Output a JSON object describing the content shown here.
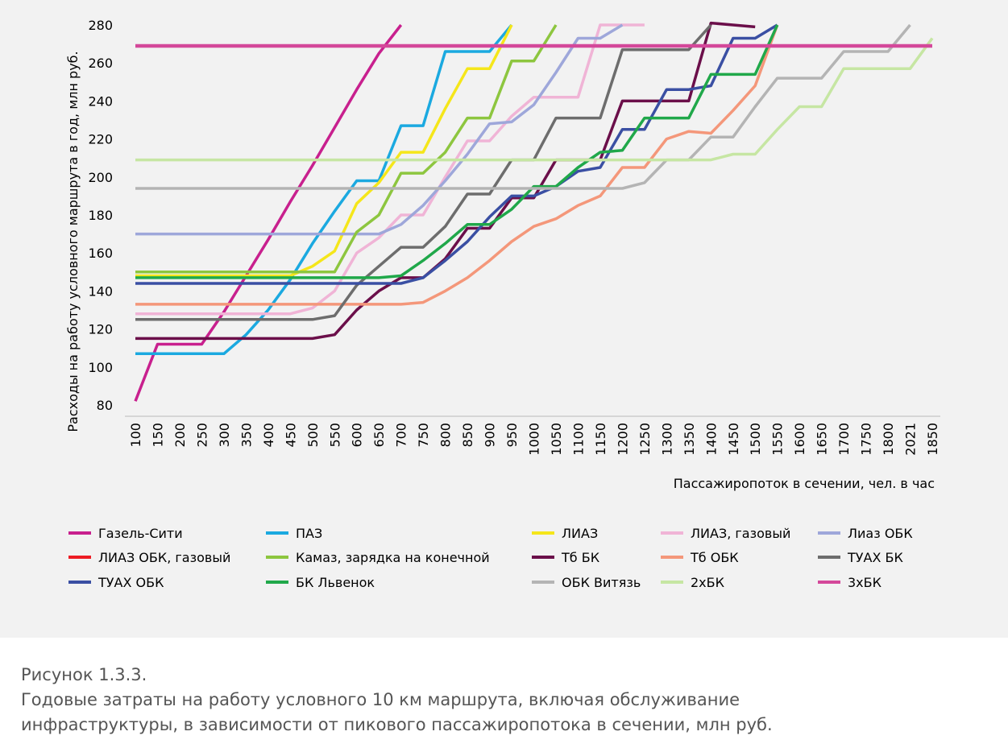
{
  "chart_data": {
    "type": "line",
    "y_label": "Расходы на работу условного маршрута в год, млн руб.",
    "x_label": "Пассажиропоток в сечении, чел. в час",
    "categories": [
      "100",
      "150",
      "200",
      "250",
      "300",
      "350",
      "400",
      "450",
      "500",
      "550",
      "600",
      "650",
      "700",
      "750",
      "800",
      "850",
      "900",
      "950",
      "1000",
      "1050",
      "1100",
      "1150",
      "1200",
      "1250",
      "1300",
      "1350",
      "1400",
      "1450",
      "1500",
      "1550",
      "1600",
      "1650",
      "1700",
      "1750",
      "1800",
      "2021",
      "1850"
    ],
    "ylim": [
      80,
      280
    ],
    "yticks": [
      80,
      100,
      120,
      140,
      160,
      180,
      200,
      220,
      240,
      260,
      280
    ],
    "grid": false,
    "series": [
      {
        "name": "Газель-Сити",
        "color": "#c8208e",
        "values": [
          82,
          112,
          112,
          112,
          129,
          148,
          167,
          187,
          206,
          226,
          246,
          265,
          280,
          null,
          null,
          null,
          null,
          null,
          null,
          null,
          null,
          null,
          null,
          null,
          null,
          null,
          null,
          null,
          null,
          null,
          null,
          null,
          null,
          null,
          null,
          null,
          null
        ]
      },
      {
        "name": "ПАЗ",
        "color": "#1ba9e0",
        "values": [
          107,
          107,
          107,
          107,
          107,
          117,
          130,
          146,
          165,
          182,
          198,
          198,
          227,
          227,
          266,
          266,
          266,
          280,
          null,
          null,
          null,
          null,
          null,
          null,
          null,
          null,
          null,
          null,
          null,
          null,
          null,
          null,
          null,
          null,
          null,
          null,
          null
        ]
      },
      {
        "name": "ЛИАЗ",
        "color": "#f5e61a",
        "values": [
          148,
          148,
          148,
          148,
          148,
          148,
          148,
          148,
          153,
          161,
          186,
          197,
          213,
          213,
          236,
          257,
          257,
          280,
          null,
          null,
          null,
          null,
          null,
          null,
          null,
          null,
          null,
          null,
          null,
          null,
          null,
          null,
          null,
          null,
          null,
          null,
          null
        ]
      },
      {
        "name": "ЛИАЗ, газовый",
        "color": "#f0b4d6",
        "values": [
          128,
          128,
          128,
          128,
          128,
          128,
          128,
          128,
          131,
          140,
          160,
          168,
          180,
          180,
          200,
          219,
          219,
          232,
          242,
          242,
          242,
          280,
          280,
          280,
          null,
          null,
          null,
          null,
          null,
          null,
          null,
          null,
          null,
          null,
          null,
          null,
          null
        ]
      },
      {
        "name": "Лиаз ОБК",
        "color": "#9ea7da",
        "values": [
          170,
          170,
          170,
          170,
          170,
          170,
          170,
          170,
          170,
          170,
          170,
          170,
          175,
          185,
          198,
          212,
          228,
          229,
          238,
          255,
          273,
          273,
          280,
          null,
          null,
          null,
          null,
          null,
          null,
          null,
          null,
          null,
          null,
          null,
          null,
          null,
          null
        ]
      },
      {
        "name": "ЛИАЗ ОБК, газовый",
        "color": "#ed1c24",
        "values": [
          null,
          null,
          null,
          null,
          null,
          null,
          null,
          null,
          null,
          null,
          null,
          null,
          null,
          null,
          null,
          null,
          null,
          null,
          null,
          null,
          null,
          null,
          null,
          null,
          null,
          null,
          null,
          null,
          null,
          null,
          null,
          null,
          null,
          null,
          null,
          null,
          null
        ]
      },
      {
        "name": "Камаз, зарядка на конечной",
        "color": "#8dc63f",
        "values": [
          150,
          150,
          150,
          150,
          150,
          150,
          150,
          150,
          150,
          150,
          171,
          180,
          202,
          202,
          213,
          231,
          231,
          261,
          261,
          280,
          null,
          null,
          null,
          null,
          null,
          null,
          null,
          null,
          null,
          null,
          null,
          null,
          null,
          null,
          null,
          null,
          null
        ]
      },
      {
        "name": "Тб БК",
        "color": "#6b0f4a",
        "values": [
          115,
          115,
          115,
          115,
          115,
          115,
          115,
          115,
          115,
          117,
          130,
          140,
          147,
          147,
          157,
          173,
          173,
          189,
          189,
          209,
          209,
          209,
          240,
          240,
          240,
          240,
          281,
          280,
          279,
          null,
          null,
          null,
          null,
          null,
          null,
          null,
          null
        ]
      },
      {
        "name": "Тб ОБК",
        "color": "#f4977a",
        "values": [
          133,
          133,
          133,
          133,
          133,
          133,
          133,
          133,
          133,
          133,
          133,
          133,
          133,
          134,
          140,
          147,
          156,
          166,
          174,
          178,
          185,
          190,
          205,
          205,
          220,
          224,
          223,
          235,
          248,
          280,
          null,
          null,
          null,
          null,
          null,
          null,
          null
        ]
      },
      {
        "name": "ТУАХ БК",
        "color": "#6d6d6d",
        "values": [
          125,
          125,
          125,
          125,
          125,
          125,
          125,
          125,
          125,
          127,
          143,
          153,
          163,
          163,
          174,
          191,
          191,
          209,
          209,
          231,
          231,
          231,
          267,
          267,
          267,
          267,
          280,
          null,
          null,
          null,
          null,
          null,
          null,
          null,
          null,
          null,
          null
        ]
      },
      {
        "name": "ТУАХ ОБК",
        "color": "#3a4fa3",
        "values": [
          144,
          144,
          144,
          144,
          144,
          144,
          144,
          144,
          144,
          144,
          144,
          144,
          144,
          147,
          156,
          166,
          179,
          190,
          190,
          195,
          203,
          205,
          225,
          225,
          246,
          246,
          248,
          273,
          273,
          280,
          null,
          null,
          null,
          null,
          null,
          null,
          null
        ]
      },
      {
        "name": "БК Львенок",
        "color": "#20a84a",
        "values": [
          147,
          147,
          147,
          147,
          147,
          147,
          147,
          147,
          147,
          147,
          147,
          147,
          148,
          156,
          165,
          175,
          175,
          183,
          195,
          195,
          205,
          213,
          214,
          231,
          231,
          231,
          254,
          254,
          254,
          280,
          null,
          null,
          null,
          null,
          null,
          null,
          null
        ]
      },
      {
        "name": "ОБК Витязь",
        "color": "#b4b4b4",
        "values": [
          194,
          194,
          194,
          194,
          194,
          194,
          194,
          194,
          194,
          194,
          194,
          194,
          194,
          194,
          194,
          194,
          194,
          194,
          194,
          194,
          194,
          194,
          194,
          197,
          209,
          209,
          221,
          221,
          237,
          252,
          252,
          252,
          266,
          266,
          266,
          280,
          null
        ]
      },
      {
        "name": "2хБК",
        "color": "#c6e6a3",
        "values": [
          209,
          209,
          209,
          209,
          209,
          209,
          209,
          209,
          209,
          209,
          209,
          209,
          209,
          209,
          209,
          209,
          209,
          209,
          209,
          209,
          209,
          209,
          209,
          209,
          209,
          209,
          209,
          212,
          212,
          225,
          237,
          237,
          257,
          257,
          257,
          257,
          273
        ]
      },
      {
        "name": "3хБК",
        "color": "#d4489a",
        "values": [
          269,
          269,
          269,
          269,
          269,
          269,
          269,
          269,
          269,
          269,
          269,
          269,
          269,
          269,
          269,
          269,
          269,
          269,
          269,
          269,
          269,
          269,
          269,
          269,
          269,
          269,
          269,
          269,
          269,
          269,
          269,
          269,
          269,
          269,
          269,
          269,
          269
        ]
      }
    ]
  },
  "caption": {
    "label": "Рисунок 1.3.3.",
    "lines": [
      "Годовые затраты на работу условного 10 км маршрута, включая обслуживание",
      "инфраструктуры, в зависимости от пикового пассажиропотока в сечении, млн руб."
    ]
  }
}
